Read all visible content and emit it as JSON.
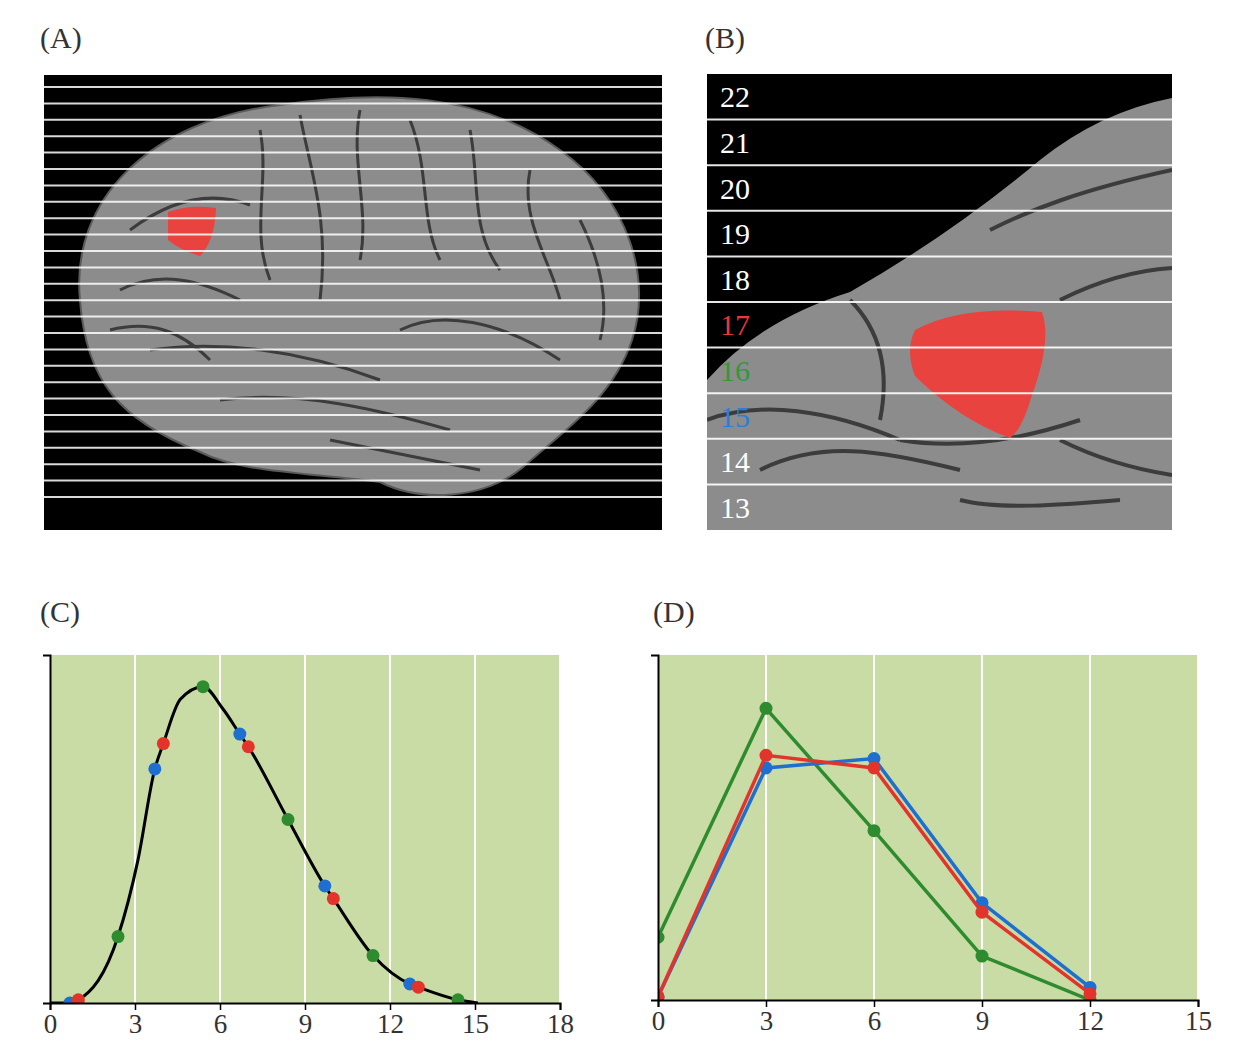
{
  "panel_labels": [
    "(A)",
    "(B)",
    "(C)",
    "(D)"
  ],
  "slices": [
    {
      "label": "22"
    },
    {
      "label": "21"
    },
    {
      "label": "20"
    },
    {
      "label": "19"
    },
    {
      "label": "18"
    },
    {
      "label": "17",
      "color": "#e8383d"
    },
    {
      "label": "16",
      "color": "#2e9a3a"
    },
    {
      "label": "15",
      "color": "#2a7fd4"
    },
    {
      "label": "14"
    },
    {
      "label": "13"
    }
  ],
  "chart_data": [
    {
      "type": "line",
      "xlim": [
        0,
        18
      ],
      "xticks": [
        0,
        3,
        6,
        9,
        12,
        15,
        18
      ],
      "ylim": [
        0,
        1.1
      ],
      "grid": true,
      "tick_labels": "x",
      "series": [
        {
          "type": "line",
          "color": "#000000",
          "line_style": "smooth",
          "marker": "none",
          "x": [
            0,
            0.7,
            1.0,
            2.4,
            3.1,
            3.7,
            4.0,
            4.6,
            5.4,
            6.1,
            6.7,
            7.0,
            8.4,
            9.7,
            10.0,
            11.4,
            12.7,
            13.0,
            14.4,
            15.1
          ],
          "values": [
            0,
            0,
            0.01,
            0.21,
            0.45,
            0.74,
            0.82,
            0.96,
            1.0,
            0.93,
            0.85,
            0.81,
            0.58,
            0.37,
            0.33,
            0.15,
            0.06,
            0.05,
            0.01,
            0
          ]
        },
        {
          "type": "scatter",
          "color": "#2e8b2e",
          "marker": "circle",
          "x": [
            2.4,
            5.4,
            8.4,
            11.4,
            14.4
          ],
          "values": [
            0.21,
            1.0,
            0.58,
            0.15,
            0.01
          ]
        },
        {
          "type": "scatter",
          "color": "#1e6fd0",
          "marker": "circle",
          "x": [
            0.7,
            3.7,
            6.7,
            9.7,
            12.7
          ],
          "values": [
            0,
            0.74,
            0.85,
            0.37,
            0.06
          ]
        },
        {
          "type": "scatter",
          "color": "#e3342b",
          "marker": "circle",
          "x": [
            1.0,
            4.0,
            7.0,
            10.0,
            13.0
          ],
          "values": [
            0.01,
            0.82,
            0.81,
            0.33,
            0.05
          ]
        }
      ]
    },
    {
      "type": "line",
      "x": [
        0,
        3,
        6,
        9,
        12
      ],
      "xlim": [
        0,
        15
      ],
      "xticks": [
        0,
        3,
        6,
        9,
        12,
        15
      ],
      "ylim": [
        0,
        1.1
      ],
      "grid": true,
      "tick_labels": "x",
      "series": [
        {
          "color": "#2e8b2e",
          "marker": "circle",
          "line_style": "solid",
          "values": [
            0.2,
            0.93,
            0.54,
            0.14,
            0
          ]
        },
        {
          "color": "#1e6fd0",
          "marker": "circle",
          "line_style": "solid",
          "values": [
            0.01,
            0.74,
            0.77,
            0.31,
            0.04
          ]
        },
        {
          "color": "#e3342b",
          "marker": "circle",
          "line_style": "solid",
          "values": [
            0.01,
            0.78,
            0.74,
            0.28,
            0.02
          ]
        }
      ]
    }
  ]
}
